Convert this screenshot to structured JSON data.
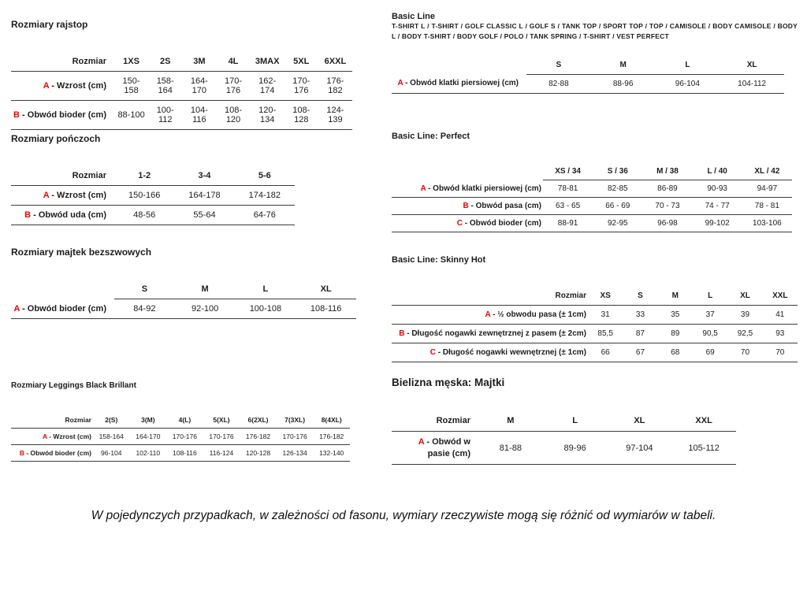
{
  "page": {
    "background": "#ffffff",
    "text_color": "#1d1d1b",
    "accent_color": "#f00000",
    "footer_note": "W pojedynczych przypadkach, w zależności od fasonu, wymiary rzeczywiste mogą się różnić od wymiarów w tabeli."
  },
  "tables": [
    {
      "id": "rozmiary-rajstop",
      "title": "Rozmiary rajstop",
      "header_label": "Rozmiar",
      "columns": [
        "1XS",
        "2S",
        "3M",
        "4L",
        "3MAX",
        "5XL",
        "6XXL"
      ],
      "rows": [
        {
          "prefix": "A",
          "label": "Wzrost (cm)",
          "values": [
            "150-158",
            "158-164",
            "164-170",
            "170-176",
            "162-174",
            "170-176",
            "176-182"
          ]
        },
        {
          "prefix": "B",
          "label": "Obwód bioder (cm)",
          "values": [
            "88-100",
            "100-112",
            "104-116",
            "108-120",
            "120-134",
            "108-128",
            "124-139"
          ]
        }
      ]
    },
    {
      "id": "rozmiary-ponczoch",
      "title": "Rozmiary pończoch",
      "header_label": "Rozmiar",
      "columns": [
        "1-2",
        "3-4",
        "5-6"
      ],
      "rows": [
        {
          "prefix": "A",
          "label": "Wzrost (cm)",
          "values": [
            "150-166",
            "164-178",
            "174-182"
          ]
        },
        {
          "prefix": "B",
          "label": "Obwód uda (cm)",
          "values": [
            "48-56",
            "55-64",
            "64-76"
          ]
        }
      ]
    },
    {
      "id": "rozmiary-majtek-bezszwowych",
      "title": "Rozmiary majtek bezszwowych",
      "header_label": "",
      "columns": [
        "S",
        "M",
        "L",
        "XL"
      ],
      "rows": [
        {
          "prefix": "A",
          "label": "Obwód bioder (cm)",
          "values": [
            "84-92",
            "92-100",
            "100-108",
            "108-116"
          ]
        }
      ]
    },
    {
      "id": "rozmiary-leggings-black-brillant",
      "title": "Rozmiary Leggings Black Brillant",
      "header_label": "Rozmiar",
      "columns": [
        "2(S)",
        "3(M)",
        "4(L)",
        "5(XL)",
        "6(2XL)",
        "7(3XL)",
        "8(4XL)"
      ],
      "rows": [
        {
          "prefix": "A",
          "label": "Wzrost (cm)",
          "values": [
            "158-164",
            "164-170",
            "170-176",
            "170-176",
            "176-182",
            "170-176",
            "176-182"
          ]
        },
        {
          "prefix": "B",
          "label": "Obwód bioder (cm)",
          "values": [
            "96-104",
            "102-110",
            "108-116",
            "116-124",
            "120-128",
            "126-134",
            "132-140"
          ]
        }
      ]
    },
    {
      "id": "basic-line",
      "title": "Basic Line",
      "subtitle": "T-SHIRT L / T-SHIRT / GOLF CLASSIC L / GOLF S / TANK TOP / SPORT TOP / TOP / CAMISOLE / BODY CAMISOLE / BODY L / BODY T-SHIRT / BODY GOLF / POLO / TANK SPRING / T-SHIRT / VEST PERFECT",
      "header_label": "",
      "columns": [
        "S",
        "M",
        "L",
        "XL"
      ],
      "rows": [
        {
          "prefix": "A",
          "label": "Obwód klatki piersiowej (cm)",
          "values": [
            "82-88",
            "88-96",
            "96-104",
            "104-112"
          ]
        }
      ]
    },
    {
      "id": "basic-line-perfect",
      "title": "Basic Line: Perfect",
      "header_label": "",
      "columns": [
        "XS / 34",
        "S / 36",
        "M / 38",
        "L / 40",
        "XL / 42"
      ],
      "rows": [
        {
          "prefix": "A",
          "label": "Obwód klatki piersiowej (cm)",
          "values": [
            "78-81",
            "82-85",
            "86-89",
            "90-93",
            "94-97"
          ]
        },
        {
          "prefix": "B",
          "label": "Obwód pasa (cm)",
          "values": [
            "63 - 65",
            "66 - 69",
            "70 - 73",
            "74 - 77",
            "78 - 81"
          ]
        },
        {
          "prefix": "C",
          "label": "Obwód bioder (cm)",
          "values": [
            "88-91",
            "92-95",
            "96-98",
            "99-102",
            "103-106"
          ]
        }
      ]
    },
    {
      "id": "basic-line-skinny-hot",
      "title": "Basic Line: Skinny Hot",
      "header_label": "Rozmiar",
      "columns": [
        "XS",
        "S",
        "M",
        "L",
        "XL",
        "XXL"
      ],
      "rows": [
        {
          "prefix": "A",
          "label": "½ obwodu pasa (± 1cm)",
          "values": [
            "31",
            "33",
            "35",
            "37",
            "39",
            "41"
          ]
        },
        {
          "prefix": "B",
          "label": "Długość nogawki zewnętrznej z pasem (± 2cm)",
          "values": [
            "85,5",
            "87",
            "89",
            "90,5",
            "92,5",
            "93"
          ]
        },
        {
          "prefix": "C",
          "label": "Długość nogawki wewnętrznej (± 1cm)",
          "values": [
            "66",
            "67",
            "68",
            "69",
            "70",
            "70"
          ]
        }
      ]
    },
    {
      "id": "bielizna-meska-majtki",
      "title": "Bielizna męska: Majtki",
      "header_label": "Rozmiar",
      "columns": [
        "M",
        "L",
        "XL",
        "XXL"
      ],
      "rows": [
        {
          "prefix": "A",
          "label": "Obwód w pasie (cm)",
          "values": [
            "81-88",
            "89-96",
            "97-104",
            "105-112"
          ]
        }
      ]
    }
  ]
}
